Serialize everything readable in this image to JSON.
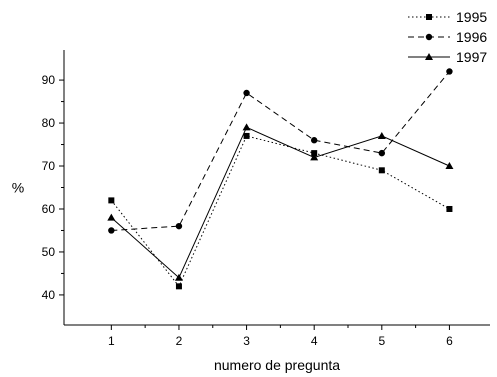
{
  "chart_data": {
    "type": "line",
    "title": "",
    "xlabel": "numero de pregunta",
    "ylabel": "%",
    "x": [
      1,
      2,
      3,
      4,
      5,
      6
    ],
    "xticks": [
      1,
      2,
      3,
      4,
      5,
      6
    ],
    "yticks": [
      40,
      50,
      60,
      70,
      80,
      90
    ],
    "xlim": [
      0.3,
      6.6
    ],
    "ylim": [
      33,
      97
    ],
    "grid": false,
    "legend_position": "top-right",
    "series": [
      {
        "name": "1995",
        "values": [
          62,
          42,
          77,
          73,
          69,
          60
        ],
        "line_style": "dotted",
        "marker": "square",
        "color": "#000000"
      },
      {
        "name": "1996",
        "values": [
          55,
          56,
          87,
          76,
          73,
          92
        ],
        "line_style": "dashed",
        "marker": "circle",
        "color": "#000000"
      },
      {
        "name": "1997",
        "values": [
          58,
          44,
          79,
          72,
          77,
          70
        ],
        "line_style": "solid",
        "marker": "triangle",
        "color": "#000000"
      }
    ]
  }
}
